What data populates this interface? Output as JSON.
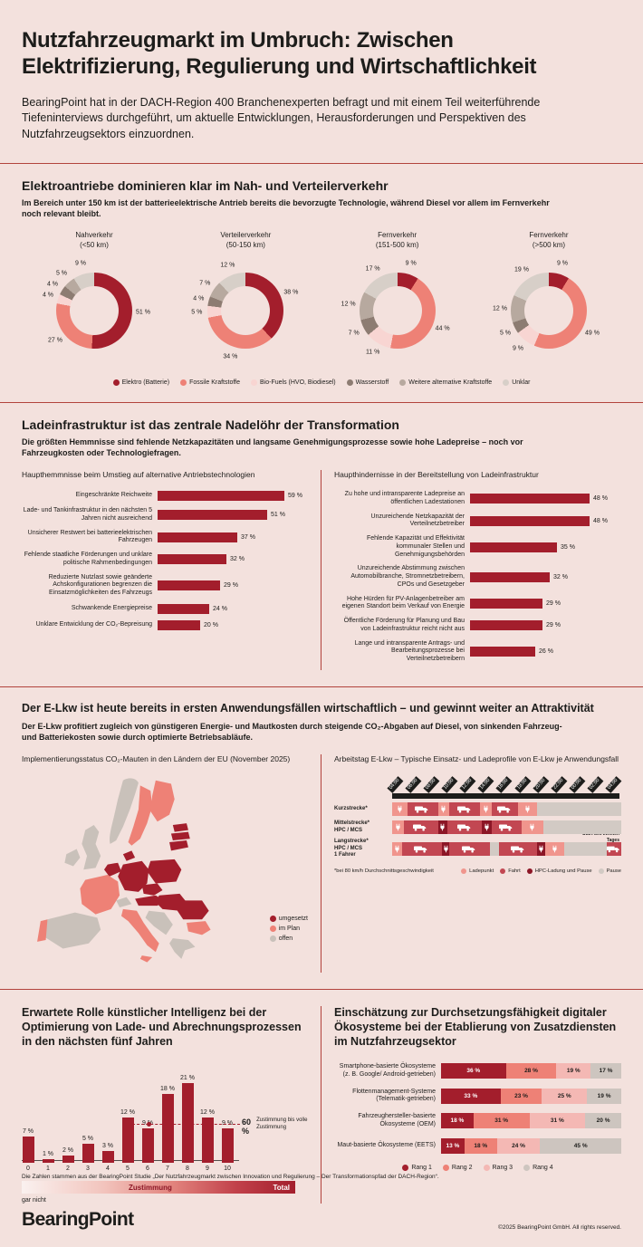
{
  "colors": {
    "bg": "#f3e1dd",
    "ink": "#1d1d1b",
    "accent": "#a31e2c",
    "divider": "#b2433c",
    "elektro": "#a31e2c",
    "fossil": "#ee8176",
    "biofuel": "#f8d5d2",
    "wasserstoff": "#8d7c72",
    "weitere": "#b7a99f",
    "unklar": "#d7cfc8",
    "rang1": "#a31e2c",
    "rang2": "#ee8176",
    "rang3": "#f4b8b4",
    "rang4": "#cdc5bf",
    "map_done": "#a31e2c",
    "map_plan": "#ee8176",
    "map_open": "#c9c1ba",
    "tl_lade": "#f0958d",
    "tl_fahrt": "#c24752",
    "tl_hpc": "#8c1626",
    "tl_pause": "#d2cac4"
  },
  "header": {
    "title": "Nutzfahrzeugmarkt im Umbruch: Zwischen Elektrifizierung, Regulierung und Wirtschaftlichkeit",
    "intro": "BearingPoint hat in der DACH-Region 400 Branchenexperten befragt und mit einem Teil weiterführende Tiefeninterviews durchgeführt, um aktuelle Entwicklungen, Herausforderungen und Perspektiven des Nutzfahrzeugsektors einzuordnen."
  },
  "sections": {
    "drives": {
      "title": "Elektroantriebe dominieren klar im Nah- und Verteilerverkehr",
      "subtitle": "Im Bereich unter 150 km ist der batterieelektrische Antrieb bereits die bevorzugte Technologie, während Diesel vor allem im Fernverkehr noch relevant bleibt."
    },
    "infra": {
      "title": "Ladeinfrastruktur ist das zentrale Nadelöhr der Transformation",
      "subtitle": "Die größten Hemmnisse sind fehlende Netzkapazitäten und langsame Genehmigungsprozesse sowie hohe Ladepreise – noch vor Fahrzeugkosten oder Technologiefragen."
    },
    "elkw": {
      "title": "Der E-Lkw ist heute bereits in ersten Anwendungsfällen wirtschaftlich – und gewinnt weiter an Attraktivität",
      "subtitle": "Der E-Lkw profitiert zugleich von günstigeren Energie- und Mautkosten durch steigende CO₂-Abgaben auf Diesel, von sinkenden Fahrzeug- und Batteriekosten sowie durch optimierte Betriebsabläufe."
    }
  },
  "chart_data": [
    {
      "id": "donuts",
      "type": "pie",
      "unit": "%",
      "legend": [
        "Elektro (Batterie)",
        "Fossile Kraftstoffe",
        "Bio-Fuels (HVO, Biodiesel)",
        "Wasserstoff",
        "Weitere alternative Kraftstoffe",
        "Unklar"
      ],
      "charts": [
        {
          "title": "Nahverkehr",
          "subtitle": "(<50 km)",
          "values": [
            51,
            27,
            4,
            4,
            5,
            9
          ]
        },
        {
          "title": "Verteilerverkehr",
          "subtitle": "(50-150 km)",
          "values": [
            38,
            34,
            5,
            4,
            7,
            12
          ]
        },
        {
          "title": "Fernverkehr",
          "subtitle": "(151-500 km)",
          "values": [
            9,
            44,
            11,
            7,
            12,
            17
          ]
        },
        {
          "title": "Fernverkehr",
          "subtitle": "(>500 km)",
          "values": [
            9,
            49,
            9,
            5,
            12,
            19
          ]
        }
      ]
    },
    {
      "id": "hemmnisse",
      "type": "bar",
      "unit": "%",
      "title": "Haupthemmnisse beim Umstieg auf alternative Antriebstechnologien",
      "categories": [
        "Eingeschränkte Reichweite",
        "Lade- und Tankinfrastruktur in den nächsten 5 Jahren nicht ausreichend",
        "Unsicherer Restwert bei batterieelektrischen Fahrzeugen",
        "Fehlende staatliche Förderungen und unklare politische Rahmenbedingungen",
        "Reduzierte Nutzlast sowie geänderte Achskonfigurationen begrenzen die Einsatzmöglichkeiten des Fahrzeugs",
        "Schwankende Energiepreise",
        "Unklare Entwicklung der CO₂-Bepreisung"
      ],
      "values": [
        59,
        51,
        37,
        32,
        29,
        24,
        20
      ]
    },
    {
      "id": "hindernisse",
      "type": "bar",
      "unit": "%",
      "title": "Haupthindernisse in der Bereitstellung von Ladeinfrastruktur",
      "categories": [
        "Zu hohe und intransparente Ladepreise an öffentlichen Ladestationen",
        "Unzureichende Netzkapazität der Verteilnetzbetreiber",
        "Fehlende Kapazität und Effektivität kommunaler Stellen und Genehmigungsbehörden",
        "Unzureichende Abstimmung zwischen Automobilbranche, Stromnetzbetreibern, CPOs und Gesetzgeber",
        "Hohe Hürden für PV-Anlagenbetreiber am eigenen Standort beim Verkauf von Energie",
        "Öffentliche Förderung für Planung und Bau von Ladeinfrastruktur reicht nicht aus",
        "Lange und intransparente Antrags- und Bearbeitungsprozesse bei Verteilnetzbetreibern"
      ],
      "values": [
        48,
        48,
        35,
        32,
        29,
        29,
        26
      ]
    },
    {
      "id": "maut_map",
      "type": "heatmap",
      "title": "Implementierungsstatus CO₂-Mauten in den Ländern der EU (November 2025)",
      "legend": [
        {
          "label": "umgesetzt",
          "color_key": "map_done"
        },
        {
          "label": "im Plan",
          "color_key": "map_plan"
        },
        {
          "label": "offen",
          "color_key": "map_open"
        }
      ]
    },
    {
      "id": "arbeitstag",
      "type": "table",
      "title": "Arbeitstag E-Lkw – Typische Einsatz- und Ladeprofile von E-Lkw je Anwendungsfall",
      "times": [
        "04:00",
        "06:00",
        "08:00",
        "10:00",
        "12:00",
        "14:00",
        "16:00",
        "18:00",
        "20:00",
        "22:00",
        "00:00",
        "02:00",
        "04:00"
      ],
      "rows": [
        {
          "label": [
            "Kurzstrecke*"
          ],
          "segments": [
            {
              "t": "lade",
              "w": 1.6,
              "icon": "plug"
            },
            {
              "t": "fahrt",
              "w": 3.2,
              "icon": "truck"
            },
            {
              "t": "lade",
              "w": 1.2,
              "icon": "plug"
            },
            {
              "t": "fahrt",
              "w": 3.2,
              "icon": "truck"
            },
            {
              "t": "lade",
              "w": 1.2,
              "icon": "plug"
            },
            {
              "t": "fahrt",
              "w": 2.8,
              "icon": "truck"
            },
            {
              "t": "lade",
              "w": 2.0,
              "icon": "plug"
            },
            {
              "t": "pause",
              "w": 8.8
            }
          ]
        },
        {
          "label": [
            "Mittelstrecke*",
            "HPC / MCS"
          ],
          "segments": [
            {
              "t": "lade",
              "w": 1.2,
              "icon": "plug"
            },
            {
              "t": "fahrt",
              "w": 3.6,
              "icon": "truck"
            },
            {
              "t": "hpc",
              "w": 1.0,
              "icon": "plug"
            },
            {
              "t": "fahrt",
              "w": 3.6,
              "icon": "truck"
            },
            {
              "t": "hpc",
              "w": 1.0,
              "icon": "plug"
            },
            {
              "t": "fahrt",
              "w": 3.2,
              "icon": "truck"
            },
            {
              "t": "lade",
              "w": 2.2,
              "icon": "plug"
            },
            {
              "t": "pause",
              "w": 8.2
            }
          ]
        },
        {
          "label": [
            "Langstrecke*",
            "HPC / MCS",
            "1 Fahrer"
          ],
          "segments": [
            {
              "t": "lade",
              "w": 1.0,
              "icon": "plug"
            },
            {
              "t": "fahrt",
              "w": 4.2,
              "icon": "truck"
            },
            {
              "t": "hpc",
              "w": 0.8,
              "icon": "plug"
            },
            {
              "t": "fahrt",
              "w": 4.2,
              "icon": "truck"
            },
            {
              "t": "pause",
              "w": 1.0
            },
            {
              "t": "fahrt",
              "w": 4.0,
              "icon": "truck"
            },
            {
              "t": "hpc",
              "w": 0.8,
              "icon": "plug"
            },
            {
              "t": "lade",
              "w": 2.0,
              "icon": "plug"
            },
            {
              "t": "pause",
              "w": 4.5
            },
            {
              "t": "fahrt",
              "w": 1.5,
              "icon": "truck"
            }
          ]
        }
      ],
      "legend": [
        "Ladepunkt",
        "Fahrt",
        "HPC-Ladung und Pause",
        "Pause"
      ],
      "footnote": "*bei 80 km/h Durchschnittsgeschwindigkeit",
      "note": "Start des zweiten Tages"
    },
    {
      "id": "ki",
      "type": "bar",
      "unit": "%",
      "title": "Erwartete Rolle künstlicher Intelligenz bei der Optimierung von Lade- und Abrechnungs­prozessen in den nächsten fünf Jahren",
      "categories": [
        "0",
        "1",
        "2",
        "3",
        "4",
        "5",
        "6",
        "7",
        "8",
        "9",
        "10"
      ],
      "values": [
        7,
        1,
        2,
        5,
        3,
        12,
        9,
        18,
        21,
        12,
        9
      ],
      "annotation": {
        "value": "60 %",
        "label": "Zustimmung bis volle Zustimmung"
      },
      "axis": {
        "left": "gar nicht",
        "center": "Zustimmung",
        "right": "Total"
      }
    },
    {
      "id": "oekosysteme",
      "type": "bar",
      "stacked": true,
      "unit": "%",
      "title": "Einschätzung zur Durchsetzungsfähigkeit digitaler Ökosysteme bei der Etablierung von Zusatzdiensten im Nutzfahrzeugsektor",
      "categories": [
        "Smartphone-basierte Ökosysteme (z. B. Google/ Android-getrieben)",
        "Flottenmanagement-Systeme (Telematik-getrieben)",
        "Fahrzeughersteller-basierte Ökosysteme (OEM)",
        "Maut-basierte Ökosysteme (EETS)"
      ],
      "series": [
        {
          "name": "Rang 1",
          "values": [
            36,
            33,
            18,
            13
          ]
        },
        {
          "name": "Rang 2",
          "values": [
            28,
            23,
            31,
            18
          ]
        },
        {
          "name": "Rang 3",
          "values": [
            19,
            25,
            31,
            24
          ]
        },
        {
          "name": "Rang 4",
          "values": [
            17,
            19,
            20,
            45
          ]
        }
      ]
    }
  ],
  "footer": {
    "source": "Die Zahlen stammen aus der BearingPoint Studie „Der Nutzfahrzeugmarkt zwischen Innovation und Regulierung – Der Transformationspfad der DACH-Region“.",
    "logo": "BearingPoint",
    "copyright": "©2025 BearingPoint GmbH. All rights reserved."
  }
}
